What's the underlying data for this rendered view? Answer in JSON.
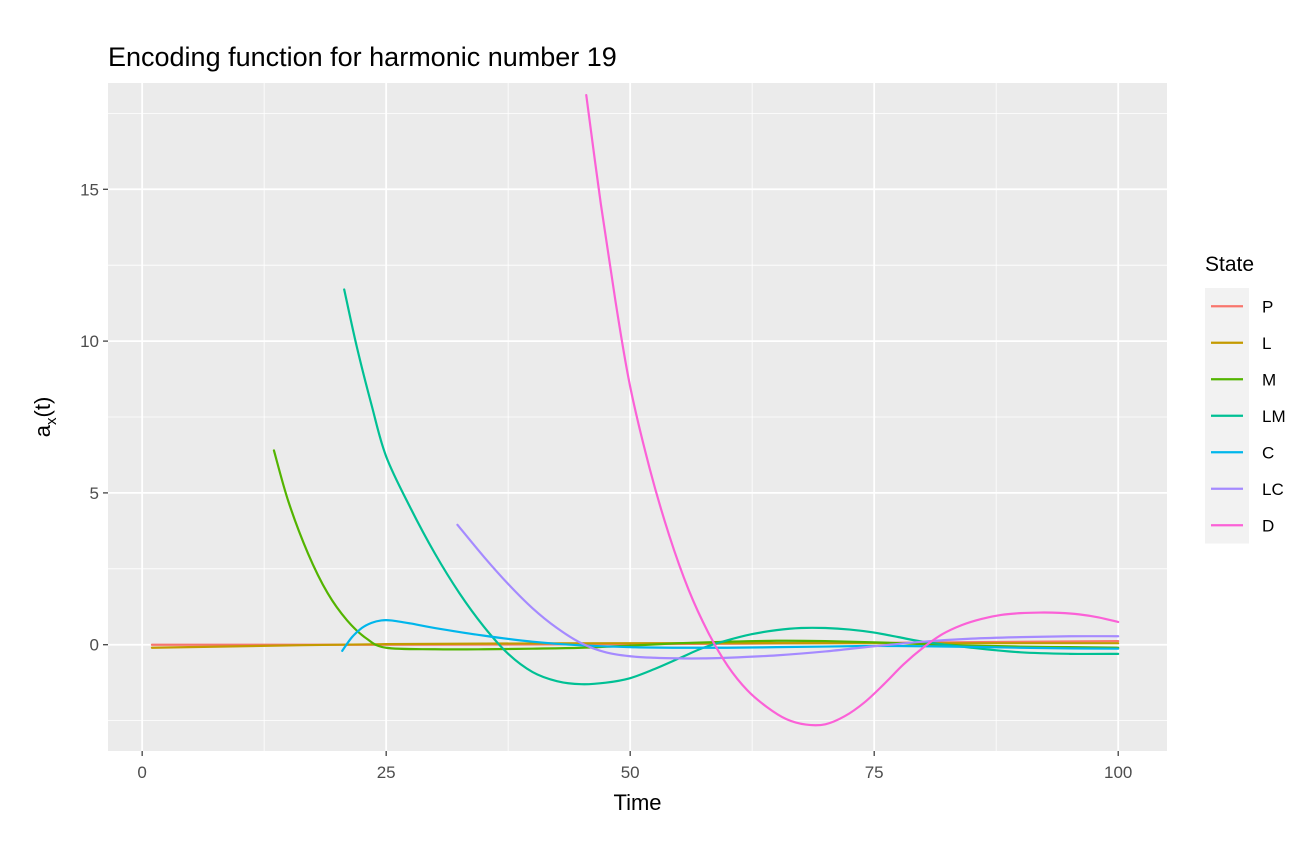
{
  "chart_data": {
    "type": "line",
    "title": "Encoding function for harmonic number 19",
    "xlabel": "Time",
    "ylabel": "a",
    "ylabel_sub": "x",
    "ylabel_suffix": "(t)",
    "xlim": [
      -3.5,
      105
    ],
    "ylim": [
      -3.5,
      18.5
    ],
    "x_ticks": [
      0,
      25,
      50,
      75,
      100
    ],
    "x_tick_labels": [
      "0",
      "25",
      "50",
      "75",
      "100"
    ],
    "y_ticks": [
      0,
      5,
      10,
      15
    ],
    "y_tick_labels": [
      "0",
      "5",
      "10",
      "15"
    ],
    "grid": true,
    "legend": {
      "title": "State",
      "position": "right"
    },
    "series": [
      {
        "name": "P",
        "color": "#F8766D",
        "x": [
          1,
          25,
          50,
          75,
          100
        ],
        "y": [
          0.0,
          0.0,
          0.02,
          0.06,
          0.12
        ]
      },
      {
        "name": "L",
        "color": "#C49A00",
        "x": [
          1,
          25,
          50,
          75,
          100
        ],
        "y": [
          -0.1,
          0.02,
          0.05,
          0.05,
          0.05
        ]
      },
      {
        "name": "M",
        "color": "#53B400",
        "x": [
          13.5,
          15,
          17,
          19,
          21,
          23,
          25,
          30,
          35,
          40,
          45,
          50,
          55,
          60,
          65,
          70,
          75,
          80,
          85,
          90,
          95,
          100
        ],
        "y": [
          6.4,
          4.7,
          3.0,
          1.7,
          0.8,
          0.2,
          -0.1,
          -0.15,
          -0.15,
          -0.13,
          -0.1,
          -0.03,
          0.05,
          0.1,
          0.13,
          0.12,
          0.08,
          0.02,
          -0.03,
          -0.06,
          -0.08,
          -0.1
        ]
      },
      {
        "name": "LM",
        "color": "#00C094",
        "x": [
          20.7,
          22,
          23.5,
          25,
          27.5,
          30,
          32.5,
          35,
          37.5,
          40,
          42.5,
          45,
          47.5,
          50,
          52.5,
          55,
          57.5,
          60,
          62.5,
          65,
          67.5,
          70,
          72.5,
          75,
          77.5,
          80,
          85,
          90,
          95,
          100
        ],
        "y": [
          11.7,
          9.8,
          7.9,
          6.2,
          4.5,
          3.0,
          1.7,
          0.6,
          -0.3,
          -0.9,
          -1.2,
          -1.3,
          -1.25,
          -1.1,
          -0.8,
          -0.45,
          -0.1,
          0.15,
          0.35,
          0.48,
          0.55,
          0.55,
          0.5,
          0.4,
          0.25,
          0.1,
          -0.1,
          -0.25,
          -0.3,
          -0.3
        ]
      },
      {
        "name": "C",
        "color": "#00B6EB",
        "x": [
          20.5,
          21.5,
          22.5,
          23.5,
          24.5,
          25.5,
          27.5,
          30,
          35,
          40,
          45,
          50,
          55,
          60,
          65,
          70,
          75,
          80,
          85,
          90,
          95,
          100
        ],
        "y": [
          -0.2,
          0.25,
          0.55,
          0.72,
          0.8,
          0.8,
          0.7,
          0.55,
          0.3,
          0.1,
          -0.02,
          -0.08,
          -0.1,
          -0.1,
          -0.08,
          -0.06,
          -0.04,
          -0.05,
          -0.07,
          -0.1,
          -0.12,
          -0.13
        ]
      },
      {
        "name": "LC",
        "color": "#A58AFF",
        "x": [
          32.3,
          35,
          37.5,
          40,
          42.5,
          45,
          47.5,
          50,
          52.5,
          55,
          57.5,
          60,
          65,
          70,
          75,
          80,
          85,
          90,
          95,
          100
        ],
        "y": [
          3.95,
          2.9,
          2.0,
          1.2,
          0.55,
          0.05,
          -0.25,
          -0.38,
          -0.43,
          -0.45,
          -0.45,
          -0.43,
          -0.35,
          -0.22,
          -0.05,
          0.1,
          0.2,
          0.25,
          0.28,
          0.28
        ]
      },
      {
        "name": "D",
        "color": "#FB61D7",
        "x": [
          45.5,
          47,
          48.5,
          50,
          52,
          54,
          56,
          58,
          60,
          62,
          64,
          66,
          68,
          70,
          72,
          74,
          76,
          78,
          80,
          82,
          84,
          86,
          88,
          90,
          92,
          94,
          96,
          98,
          100
        ],
        "y": [
          18.1,
          14.5,
          11.3,
          8.5,
          5.8,
          3.6,
          1.8,
          0.4,
          -0.7,
          -1.5,
          -2.05,
          -2.45,
          -2.63,
          -2.62,
          -2.35,
          -1.9,
          -1.3,
          -0.65,
          -0.1,
          0.35,
          0.65,
          0.85,
          0.98,
          1.04,
          1.06,
          1.05,
          1.0,
          0.9,
          0.75
        ]
      }
    ]
  }
}
